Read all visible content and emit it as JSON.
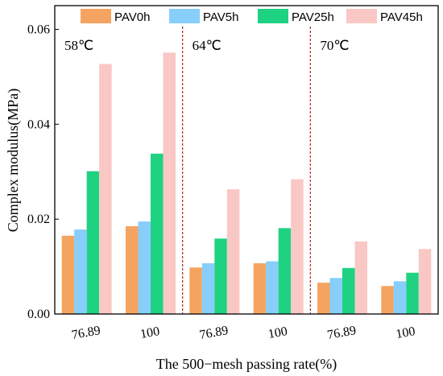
{
  "chart_data": {
    "type": "bar",
    "xlabel": "The 500−mesh passing rate(%)",
    "ylabel": "Complex modulus(MPa)",
    "ylim": [
      0,
      0.065
    ],
    "yticks": [
      "0.00",
      "0.02",
      "0.04",
      "0.06"
    ],
    "ytick_values": [
      0,
      0.02,
      0.04,
      0.06
    ],
    "categories": [
      "76.89",
      "100",
      "76.89",
      "100",
      "76.89",
      "100"
    ],
    "groups": [
      {
        "label": "58℃",
        "categories": [
          0,
          1
        ]
      },
      {
        "label": "64℃",
        "categories": [
          2,
          3
        ]
      },
      {
        "label": "70℃",
        "categories": [
          4,
          5
        ]
      }
    ],
    "legend_position": "top",
    "grid": false,
    "series": [
      {
        "name": "PAV0h",
        "color": "#f4a460",
        "values": [
          0.0165,
          0.0185,
          0.0098,
          0.0107,
          0.0066,
          0.0059
        ]
      },
      {
        "name": "PAV5h",
        "color": "#87cefa",
        "values": [
          0.0178,
          0.0195,
          0.0107,
          0.0111,
          0.0076,
          0.0069
        ]
      },
      {
        "name": "PAV25h",
        "color": "#1fd282",
        "values": [
          0.0301,
          0.0338,
          0.0159,
          0.0181,
          0.0097,
          0.0087
        ]
      },
      {
        "name": "PAV45h",
        "color": "#f9c8c4",
        "values": [
          0.0527,
          0.0551,
          0.0263,
          0.0284,
          0.0153,
          0.0137
        ]
      }
    ]
  }
}
